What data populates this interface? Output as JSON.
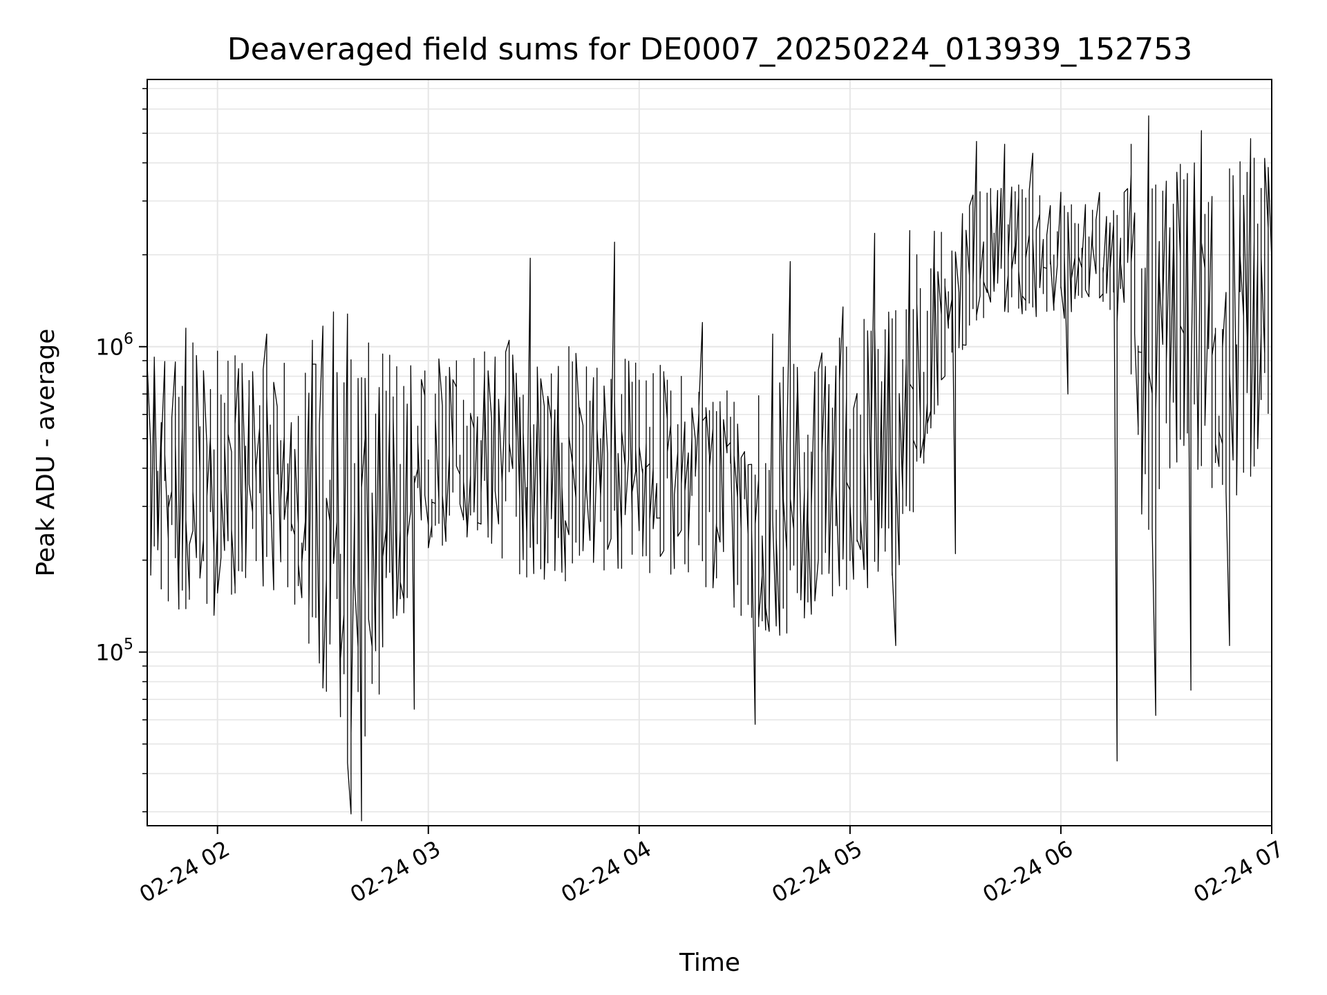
{
  "chart_data": {
    "type": "line",
    "title": "Deaveraged field sums for DE0007_20250224_013939_152753",
    "xlabel": "Time",
    "ylabel": "Peak ADU - average",
    "x_range": [
      "2025-02-24 01:40",
      "2025-02-24 07:00"
    ],
    "y_range": [
      27000,
      7500000
    ],
    "y_scale": "log",
    "grid": true,
    "line_color": "#000000",
    "grid_color": "#e6e6e6",
    "x_ticks": [
      {
        "value": "2025-02-24 02:00",
        "label": "02-24 02"
      },
      {
        "value": "2025-02-24 03:00",
        "label": "02-24 03"
      },
      {
        "value": "2025-02-24 04:00",
        "label": "02-24 04"
      },
      {
        "value": "2025-02-24 05:00",
        "label": "02-24 05"
      },
      {
        "value": "2025-02-24 06:00",
        "label": "02-24 06"
      },
      {
        "value": "2025-02-24 07:00",
        "label": "02-24 07"
      }
    ],
    "y_ticks": [
      {
        "value": 100000,
        "base": "10",
        "exp": "5"
      },
      {
        "value": 1000000,
        "base": "10",
        "exp": "6"
      }
    ],
    "series": [
      {
        "x": [
          "2025-02-24 01:40",
          "2025-02-24 01:50",
          "2025-02-24 02:00",
          "2025-02-24 02:10",
          "2025-02-24 02:20",
          "2025-02-24 02:25",
          "2025-02-24 02:30",
          "2025-02-24 02:35",
          "2025-02-24 02:40",
          "2025-02-24 02:45",
          "2025-02-24 02:50",
          "2025-02-24 02:55",
          "2025-02-24 03:00",
          "2025-02-24 03:10",
          "2025-02-24 03:20",
          "2025-02-24 03:30",
          "2025-02-24 03:40",
          "2025-02-24 03:50",
          "2025-02-24 04:00",
          "2025-02-24 04:10",
          "2025-02-24 04:20",
          "2025-02-24 04:30",
          "2025-02-24 04:35",
          "2025-02-24 04:40",
          "2025-02-24 04:50",
          "2025-02-24 05:00",
          "2025-02-24 05:10",
          "2025-02-24 05:15",
          "2025-02-24 05:20",
          "2025-02-24 05:30",
          "2025-02-24 05:40",
          "2025-02-24 05:50",
          "2025-02-24 06:00",
          "2025-02-24 06:10",
          "2025-02-24 06:15",
          "2025-02-24 06:20",
          "2025-02-24 06:25",
          "2025-02-24 06:30",
          "2025-02-24 06:40",
          "2025-02-24 06:50",
          "2025-02-24 07:00"
        ],
        "lo": [
          160000,
          130000,
          130000,
          170000,
          150000,
          120000,
          70000,
          45000,
          40000,
          55000,
          120000,
          100000,
          200000,
          230000,
          190000,
          170000,
          160000,
          180000,
          170000,
          180000,
          150000,
          120000,
          100000,
          110000,
          130000,
          160000,
          150000,
          180000,
          350000,
          800000,
          1300000,
          1250000,
          1200000,
          1500000,
          1300000,
          1000000,
          150000,
          400000,
          350000,
          300000,
          500000
        ],
        "mid": [
          300000,
          350000,
          320000,
          380000,
          320000,
          280000,
          200000,
          150000,
          160000,
          150000,
          250000,
          200000,
          330000,
          450000,
          380000,
          350000,
          380000,
          420000,
          400000,
          430000,
          350000,
          320000,
          250000,
          270000,
          300000,
          350000,
          330000,
          400000,
          650000,
          1400000,
          2200000,
          1900000,
          1800000,
          2100000,
          1900000,
          1300000,
          500000,
          1000000,
          900000,
          800000,
          900000
        ],
        "hi": [
          1100000,
          1050000,
          1000000,
          900000,
          900000,
          850000,
          1250000,
          1200000,
          1100000,
          1000000,
          1000000,
          900000,
          950000,
          1000000,
          1000000,
          1000000,
          1050000,
          900000,
          950000,
          850000,
          750000,
          800000,
          800000,
          850000,
          1000000,
          1200000,
          1500000,
          1800000,
          2200000,
          3000000,
          3300000,
          3400000,
          3300000,
          2800000,
          2600000,
          4200000,
          4000000,
          4000000,
          4300000,
          4500000,
          4300000
        ]
      }
    ],
    "spikes": [
      {
        "x": "2025-02-24 01:51",
        "y": 1150000
      },
      {
        "x": "2025-02-24 02:14",
        "y": 1100000
      },
      {
        "x": "2025-02-24 02:27",
        "y": 1050000
      },
      {
        "x": "2025-02-24 02:33",
        "y": 1300000
      },
      {
        "x": "2025-02-24 02:37",
        "y": 1280000
      },
      {
        "x": "2025-02-24 02:41",
        "y": 28000
      },
      {
        "x": "2025-02-24 02:38",
        "y": 29500
      },
      {
        "x": "2025-02-24 02:56",
        "y": 65000
      },
      {
        "x": "2025-02-24 03:23",
        "y": 1050000
      },
      {
        "x": "2025-02-24 03:29",
        "y": 1950000
      },
      {
        "x": "2025-02-24 03:53",
        "y": 2200000
      },
      {
        "x": "2025-02-24 04:18",
        "y": 1200000
      },
      {
        "x": "2025-02-24 04:33",
        "y": 58000
      },
      {
        "x": "2025-02-24 04:38",
        "y": 1100000
      },
      {
        "x": "2025-02-24 04:43",
        "y": 1900000
      },
      {
        "x": "2025-02-24 04:58",
        "y": 1350000
      },
      {
        "x": "2025-02-24 05:07",
        "y": 2350000
      },
      {
        "x": "2025-02-24 05:13",
        "y": 105000
      },
      {
        "x": "2025-02-24 05:17",
        "y": 2400000
      },
      {
        "x": "2025-02-24 05:30",
        "y": 210000
      },
      {
        "x": "2025-02-24 05:36",
        "y": 4700000
      },
      {
        "x": "2025-02-24 05:44",
        "y": 4600000
      },
      {
        "x": "2025-02-24 05:52",
        "y": 4300000
      },
      {
        "x": "2025-02-24 06:02",
        "y": 700000
      },
      {
        "x": "2025-02-24 06:11",
        "y": 3200000
      },
      {
        "x": "2025-02-24 06:16",
        "y": 44000
      },
      {
        "x": "2025-02-24 06:20",
        "y": 4600000
      },
      {
        "x": "2025-02-24 06:25",
        "y": 5700000
      },
      {
        "x": "2025-02-24 06:27",
        "y": 62000
      },
      {
        "x": "2025-02-24 06:37",
        "y": 75000
      },
      {
        "x": "2025-02-24 06:40",
        "y": 5100000
      },
      {
        "x": "2025-02-24 06:48",
        "y": 105000
      },
      {
        "x": "2025-02-24 06:54",
        "y": 4800000
      }
    ]
  }
}
